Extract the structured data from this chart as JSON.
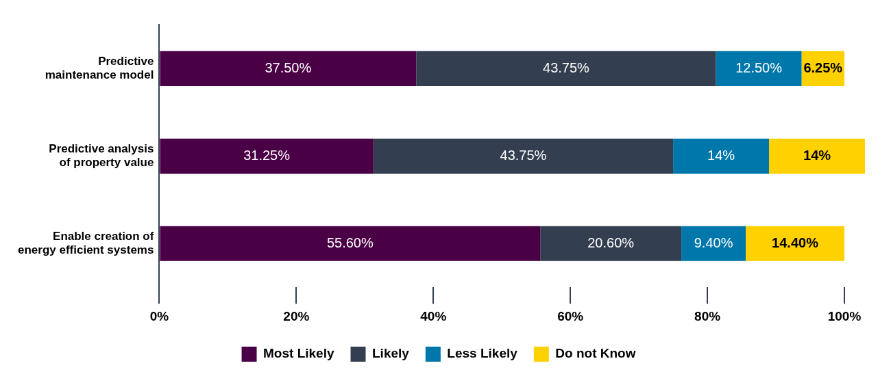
{
  "chart_data": {
    "type": "bar",
    "orientation": "horizontal",
    "stacked": true,
    "categories": [
      "Predictive maintenance model",
      "Predictive analysis of property value",
      "Enable creation of energy efficient systems"
    ],
    "series": [
      {
        "name": "Most Likely",
        "color": "#4a0045",
        "values": [
          37.5,
          31.25,
          55.6
        ],
        "value_labels": [
          "37.50%",
          "31.25%",
          "55.60%"
        ]
      },
      {
        "name": "Likely",
        "color": "#333f50",
        "values": [
          43.75,
          43.75,
          20.6
        ],
        "value_labels": [
          "43.75%",
          "43.75%",
          "20.60%"
        ]
      },
      {
        "name": "Less Likely",
        "color": "#0077aa",
        "values": [
          12.5,
          14,
          9.4
        ],
        "value_labels": [
          "12.50%",
          "14%",
          "9.40%"
        ]
      },
      {
        "name": "Do not Know",
        "color": "#ffd100",
        "values": [
          6.25,
          14,
          14.4
        ],
        "value_labels": [
          "6.25%",
          "14%",
          "14.40%"
        ]
      }
    ],
    "xlim": [
      0,
      103
    ],
    "xticks": [
      {
        "value": 0,
        "label": "0%"
      },
      {
        "value": 20,
        "label": "20%"
      },
      {
        "value": 40,
        "label": "40%"
      },
      {
        "value": 60,
        "label": "60%"
      },
      {
        "value": 80,
        "label": "80%"
      },
      {
        "value": 100,
        "label": "100%"
      }
    ],
    "grid": false,
    "legend": "bottom"
  }
}
